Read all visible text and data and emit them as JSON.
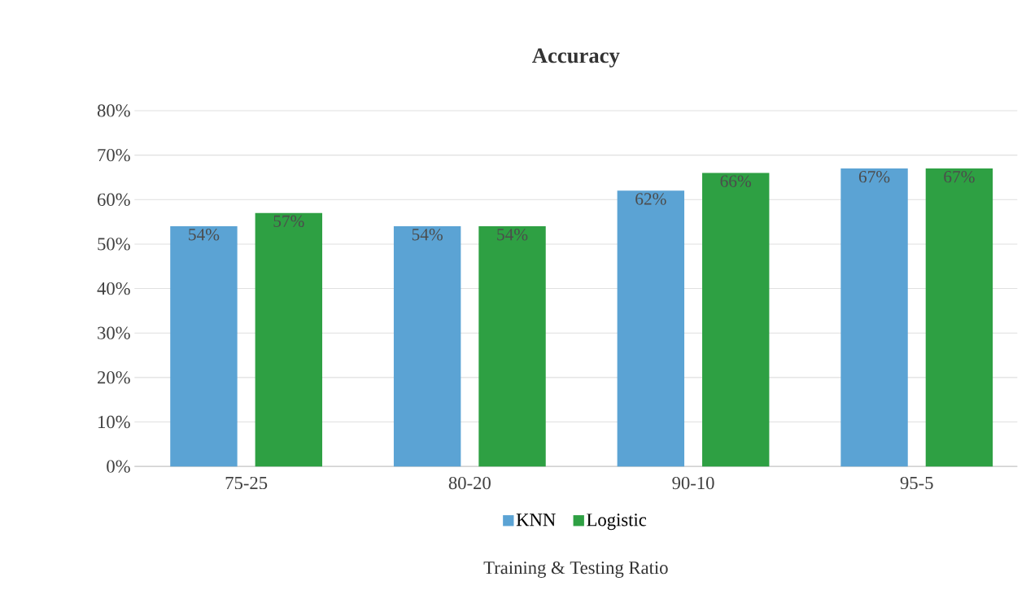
{
  "chart_data": {
    "type": "bar",
    "title": "Accuracy",
    "xlabel": "Training & Testing Ratio",
    "categories": [
      "75-25",
      "80-20",
      "90-10",
      "95-5"
    ],
    "series": [
      {
        "name": "KNN",
        "color": "#5ba3d4",
        "values": [
          54,
          54,
          62,
          67
        ],
        "value_labels": [
          "54%",
          "54%",
          "62%",
          "67%"
        ]
      },
      {
        "name": "Logistic",
        "color": "#2ea043",
        "values": [
          57,
          54,
          66,
          67
        ],
        "value_labels": [
          "57%",
          "54%",
          "66%",
          "67%"
        ]
      }
    ],
    "ylim": [
      0,
      80
    ],
    "yticks": [
      {
        "value": 0,
        "label": "0%"
      },
      {
        "value": 10,
        "label": "10%"
      },
      {
        "value": 20,
        "label": "20%"
      },
      {
        "value": 30,
        "label": "30%"
      },
      {
        "value": 40,
        "label": "40%"
      },
      {
        "value": 50,
        "label": "50%"
      },
      {
        "value": 60,
        "label": "60%"
      },
      {
        "value": 70,
        "label": "70%"
      },
      {
        "value": 80,
        "label": "80%"
      }
    ],
    "grid": "y",
    "legend": "bottom"
  }
}
